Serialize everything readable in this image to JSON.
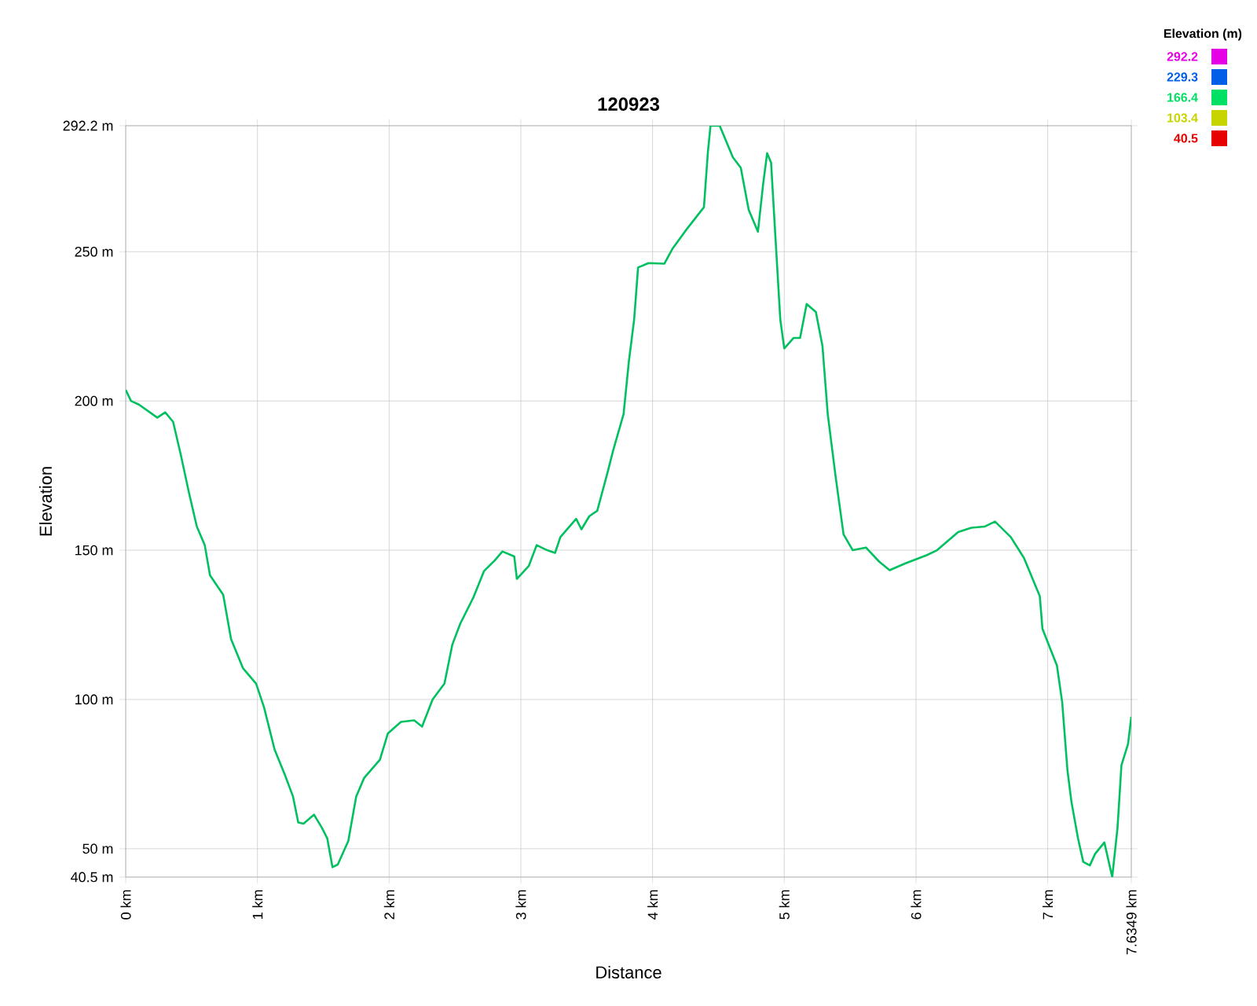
{
  "chart_data": {
    "type": "line",
    "title": "120923",
    "xlabel": "Distance",
    "ylabel": "Elevation",
    "clabel": "Elevation (m)",
    "x": [
      0,
      0.04,
      0.1,
      0.24,
      0.3,
      0.36,
      0.42,
      0.48,
      0.54,
      0.6,
      0.64,
      0.74,
      0.8,
      0.89,
      0.99,
      1.05,
      1.13,
      1.21,
      1.27,
      1.31,
      1.35,
      1.43,
      1.49,
      1.53,
      1.57,
      1.61,
      1.69,
      1.75,
      1.81,
      1.93,
      1.99,
      2.09,
      2.19,
      2.25,
      2.33,
      2.42,
      2.48,
      2.54,
      2.64,
      2.72,
      2.8,
      2.86,
      2.95,
      2.97,
      3.06,
      3.12,
      3.2,
      3.26,
      3.3,
      3.42,
      3.46,
      3.52,
      3.58,
      3.66,
      3.7,
      3.78,
      3.82,
      3.86,
      3.89,
      3.97,
      4.09,
      4.15,
      4.25,
      4.39,
      4.42,
      4.44,
      4.51,
      4.61,
      4.67,
      4.73,
      4.8,
      4.84,
      4.87,
      4.9,
      4.93,
      4.97,
      5.0,
      5.07,
      5.12,
      5.17,
      5.24,
      5.29,
      5.33,
      5.39,
      5.45,
      5.52,
      5.62,
      5.72,
      5.8,
      5.92,
      6.08,
      6.16,
      6.32,
      6.42,
      6.52,
      6.6,
      6.72,
      6.82,
      6.94,
      6.96,
      7.07,
      7.11,
      7.15,
      7.18,
      7.23,
      7.27,
      7.32,
      7.36,
      7.43,
      7.45,
      7.49,
      7.53,
      7.56,
      7.61,
      7.6349
    ],
    "values": [
      203.7,
      200,
      198.8,
      194.4,
      196.2,
      193,
      181.6,
      169.3,
      157.9,
      151.7,
      141.6,
      135.1,
      120.2,
      110.5,
      105.3,
      97.4,
      83.3,
      74.6,
      67.5,
      58.8,
      58.4,
      61.4,
      57,
      53.5,
      43.8,
      44.7,
      52.6,
      67.5,
      73.7,
      79.8,
      88.6,
      92.5,
      93,
      90.9,
      100,
      105.3,
      118.4,
      125.4,
      134.2,
      143,
      146.5,
      149.6,
      147.9,
      140.4,
      144.7,
      151.7,
      150,
      149.1,
      154.4,
      160.5,
      157,
      161.4,
      163.2,
      176.3,
      183.3,
      195.6,
      213.2,
      227.2,
      244.7,
      246.2,
      246,
      250.9,
      257,
      264.9,
      283.3,
      292.2,
      292.2,
      281.6,
      278.1,
      264,
      256.7,
      272.8,
      283,
      279.8,
      257,
      227.2,
      217.6,
      221.1,
      221.1,
      232.5,
      229.8,
      218.4,
      195.6,
      174.6,
      155.3,
      150,
      150.9,
      146.2,
      143.3,
      145.6,
      148.3,
      150,
      156.1,
      157.5,
      157.9,
      159.6,
      154.4,
      147.4,
      134.6,
      123.7,
      111.4,
      99.1,
      76.3,
      65.8,
      53.5,
      45.6,
      44.4,
      48.3,
      52.1,
      48.3,
      40.5,
      57,
      78,
      85.1,
      94.2
    ],
    "xlim": [
      0,
      7.6349
    ],
    "ylim": [
      40.5,
      292.2
    ],
    "xticks": [
      {
        "value": 0,
        "label": "0 km"
      },
      {
        "value": 1,
        "label": "1 km"
      },
      {
        "value": 2,
        "label": "2 km"
      },
      {
        "value": 3,
        "label": "3 km"
      },
      {
        "value": 4,
        "label": "4 km"
      },
      {
        "value": 5,
        "label": "5 km"
      },
      {
        "value": 6,
        "label": "6 km"
      },
      {
        "value": 7,
        "label": "7 km"
      },
      {
        "value": 7.6349,
        "label": "7.6349 km"
      }
    ],
    "yticks": [
      {
        "value": 40.5,
        "label": "40.5 m"
      },
      {
        "value": 50,
        "label": "50 m"
      },
      {
        "value": 100,
        "label": "100 m"
      },
      {
        "value": 150,
        "label": "150 m"
      },
      {
        "value": 200,
        "label": "200 m"
      },
      {
        "value": 250,
        "label": "250 m"
      },
      {
        "value": 292.2,
        "label": "292.2 m"
      }
    ],
    "clim": [
      40.5,
      292.2
    ],
    "cticks": [
      292.2,
      229.3,
      166.4,
      103.4,
      40.5
    ],
    "grid": true,
    "color": "#00c060"
  }
}
